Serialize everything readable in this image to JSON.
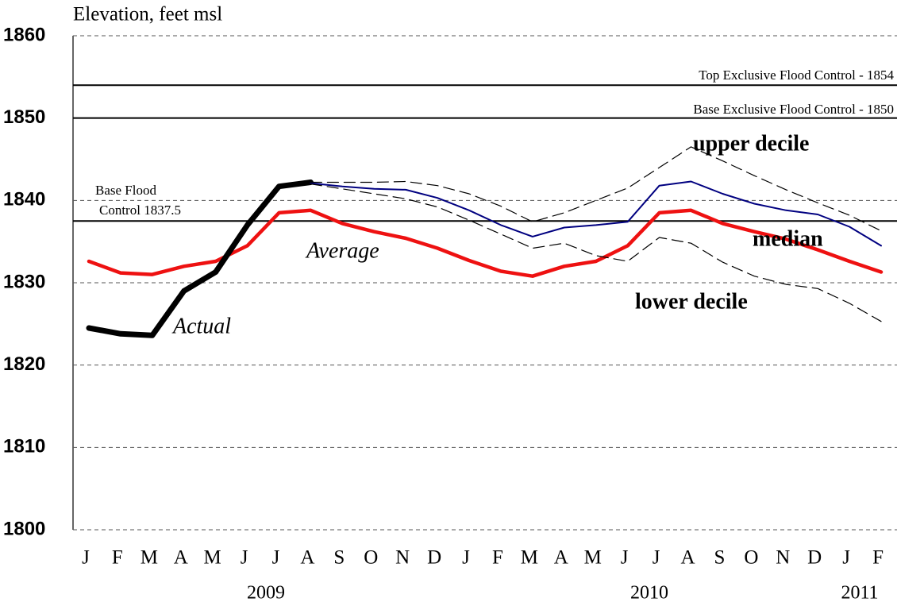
{
  "chart_data": {
    "type": "line",
    "y_axis_label": "Elevation, feet msl",
    "categories": [
      "J",
      "F",
      "M",
      "A",
      "M",
      "J",
      "J",
      "A",
      "S",
      "O",
      "N",
      "D",
      "J",
      "F",
      "M",
      "A",
      "M",
      "J",
      "J",
      "A",
      "S",
      "O",
      "N",
      "D",
      "J",
      "F"
    ],
    "years": [
      "2009",
      "2010",
      "2011"
    ],
    "ylim": [
      1800,
      1860
    ],
    "yticks": [
      1800,
      1810,
      1820,
      1830,
      1840,
      1850,
      1860
    ],
    "grid": true,
    "reference_lines": [
      {
        "value": 1854,
        "label": [
          "Top Exclusive Flood Control - 1854"
        ]
      },
      {
        "value": 1850,
        "label": [
          "Base Exclusive Flood Control - 1850"
        ]
      },
      {
        "value": 1837.5,
        "label": [
          "Base Flood",
          "Control  1837.5"
        ]
      }
    ],
    "series": [
      {
        "name": "Average",
        "color": "#ee1111",
        "dashed": false,
        "values": [
          1832.6,
          1831.2,
          1831,
          1832,
          1832.6,
          1834.5,
          1838.5,
          1838.8,
          1837.2,
          1836.2,
          1835.4,
          1834.2,
          1832.7,
          1831.4,
          1830.8,
          1832,
          1832.6,
          1834.5,
          1838.5,
          1838.8,
          1837.2,
          1836.2,
          1835.3,
          1834,
          1832.6,
          1831.3
        ]
      },
      {
        "name": "Actual",
        "color": "#000000",
        "dashed": false,
        "values": [
          1824.5,
          1823.8,
          1823.6,
          1829,
          1831.3,
          1837,
          1841.7,
          1842.2,
          null,
          null,
          null,
          null,
          null,
          null,
          null,
          null,
          null,
          null,
          null,
          null,
          null,
          null,
          null,
          null,
          null,
          null
        ]
      },
      {
        "name": "median",
        "color": "#000080",
        "dashed": false,
        "values": [
          null,
          null,
          null,
          null,
          null,
          null,
          null,
          1842.1,
          1841.7,
          1841.4,
          1841.3,
          1840.3,
          1838.8,
          1837,
          1835.6,
          1836.7,
          1837,
          1837.4,
          1841.8,
          1842.3,
          1840.8,
          1839.6,
          1838.8,
          1838.3,
          1836.8,
          1834.5
        ]
      },
      {
        "name": "upper decile",
        "color": "#000000",
        "dashed": true,
        "values": [
          null,
          null,
          null,
          null,
          null,
          null,
          null,
          1842.2,
          1842.2,
          1842.2,
          1842.3,
          1841.8,
          1840.8,
          1839.3,
          1837.4,
          1838.5,
          1840,
          1841.5,
          1844,
          1846.5,
          1844.8,
          1843,
          1841.3,
          1839.7,
          1838.2,
          1836.3
        ]
      },
      {
        "name": "lower decile",
        "color": "#000000",
        "dashed": true,
        "values": [
          null,
          null,
          null,
          null,
          null,
          null,
          null,
          1842,
          1841.4,
          1840.8,
          1840.2,
          1839.2,
          1837.6,
          1835.9,
          1834.2,
          1834.8,
          1833.3,
          1832.6,
          1835.5,
          1834.8,
          1832.5,
          1830.8,
          1829.8,
          1829.3,
          1827.5,
          1825.3
        ]
      }
    ]
  }
}
